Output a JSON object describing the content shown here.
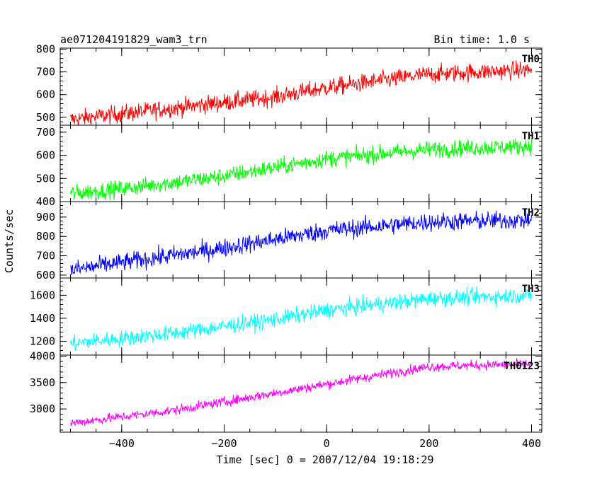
{
  "header": {
    "left_title": "ae071204191829_wam3_trn",
    "right_title": "Bin time: 1.0 s"
  },
  "axes": {
    "ylabel": "Counts/sec",
    "xlabel": "Time [sec] 0 = 2007/12/04 19:18:29",
    "xlim": [
      -520,
      420
    ],
    "xticks": [
      -400,
      -200,
      0,
      200,
      400
    ]
  },
  "chart_data": [
    {
      "type": "line",
      "name": "TH0",
      "color": "#ff0000",
      "ylim": [
        465,
        805
      ],
      "yticks": [
        500,
        600,
        700,
        800
      ],
      "x_start": -500,
      "x_end": 400,
      "trend_x": [
        -500,
        -300,
        -100,
        0,
        100,
        200,
        300,
        400
      ],
      "trend_y": [
        490,
        540,
        590,
        630,
        660,
        690,
        700,
        710
      ],
      "noise": 28
    },
    {
      "type": "line",
      "name": "TH1",
      "color": "#00ff00",
      "ylim": [
        400,
        730
      ],
      "yticks": [
        400,
        500,
        600,
        700
      ],
      "x_start": -500,
      "x_end": 400,
      "trend_x": [
        -500,
        -400,
        -200,
        0,
        200,
        400
      ],
      "trend_y": [
        435,
        455,
        510,
        585,
        625,
        640
      ],
      "noise": 26
    },
    {
      "type": "line",
      "name": "TH2",
      "color": "#0000ff",
      "ylim": [
        585,
        980
      ],
      "yticks": [
        600,
        700,
        800,
        900
      ],
      "x_start": -500,
      "x_end": 400,
      "trend_x": [
        -500,
        -400,
        -200,
        0,
        200,
        400
      ],
      "trend_y": [
        625,
        665,
        740,
        830,
        875,
        885
      ],
      "noise": 34
    },
    {
      "type": "line",
      "name": "TH3",
      "color": "#00ffff",
      "ylim": [
        1080,
        1750
      ],
      "yticks": [
        1200,
        1400,
        1600
      ],
      "x_start": -500,
      "x_end": 400,
      "trend_x": [
        -500,
        -300,
        -100,
        0,
        200,
        400
      ],
      "trend_y": [
        1180,
        1270,
        1390,
        1470,
        1570,
        1600
      ],
      "noise": 50
    },
    {
      "type": "line",
      "name": "TH0123",
      "color": "#ff00ff",
      "ylim": [
        2560,
        4020
      ],
      "yticks": [
        3000,
        3500,
        4000
      ],
      "x_start": -500,
      "x_end": 400,
      "trend_x": [
        -500,
        -300,
        -100,
        0,
        100,
        200,
        300,
        400
      ],
      "trend_y": [
        2730,
        2970,
        3300,
        3470,
        3640,
        3800,
        3830,
        3850
      ],
      "noise": 65
    }
  ]
}
